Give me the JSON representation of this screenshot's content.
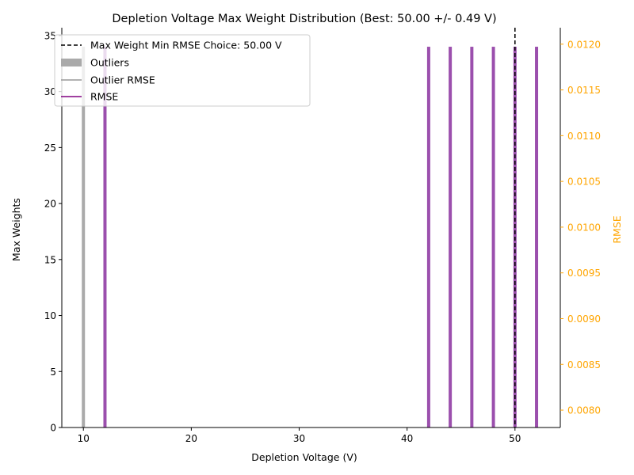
{
  "chart_data": {
    "type": "bar",
    "title": "Depletion Voltage Max Weight Distribution (Best: 50.00 +/- 0.49 V)",
    "xlabel": "Depletion Voltage (V)",
    "ylabel": "Max Weights",
    "y2label": "RMSE",
    "xlim": [
      8,
      54.2
    ],
    "ylim": [
      0,
      35.7
    ],
    "y2lim": [
      0.00781,
      0.01218
    ],
    "xticks": [
      "10",
      "20",
      "30",
      "40",
      "50"
    ],
    "xtick_values": [
      10,
      20,
      30,
      40,
      50
    ],
    "yticks": [
      "0",
      "5",
      "10",
      "15",
      "20",
      "25",
      "30",
      "35"
    ],
    "ytick_values": [
      0,
      5,
      10,
      15,
      20,
      25,
      30,
      35
    ],
    "y2ticks": [
      "0.0080",
      "0.0085",
      "0.0090",
      "0.0095",
      "0.0100",
      "0.0105",
      "0.0110",
      "0.0115",
      "0.0120"
    ],
    "y2tick_values": [
      0.008,
      0.0085,
      0.009,
      0.0095,
      0.01,
      0.0105,
      0.011,
      0.0115,
      0.012
    ],
    "best_choice_x": 50.0,
    "series": [
      {
        "name": "Outliers",
        "kind": "bar",
        "color": "#aaaaaa",
        "x": [
          10
        ],
        "values": [
          34
        ]
      },
      {
        "name": "Max Weights",
        "kind": "bar",
        "color": "#9b4fad",
        "x": [
          12,
          42,
          44,
          46,
          48,
          50,
          52
        ],
        "values": [
          34,
          34,
          34,
          34,
          34,
          34,
          34
        ]
      }
    ],
    "legend": {
      "placement": "top-left",
      "entries": [
        {
          "label": "Max Weight Min RMSE Choice: 50.00 V",
          "style": "dashed-line",
          "color": "#000000"
        },
        {
          "label": "Outliers",
          "style": "patch",
          "color": "#aaaaaa"
        },
        {
          "label": "Outlier RMSE",
          "style": "line",
          "color": "#999999"
        },
        {
          "label": "RMSE",
          "style": "line",
          "color": "#800080"
        }
      ]
    },
    "colors": {
      "axis": "#000000",
      "y2_axis": "#ffa500",
      "rmse_line": "#800080",
      "outlier_rmse_line": "#999999"
    }
  }
}
